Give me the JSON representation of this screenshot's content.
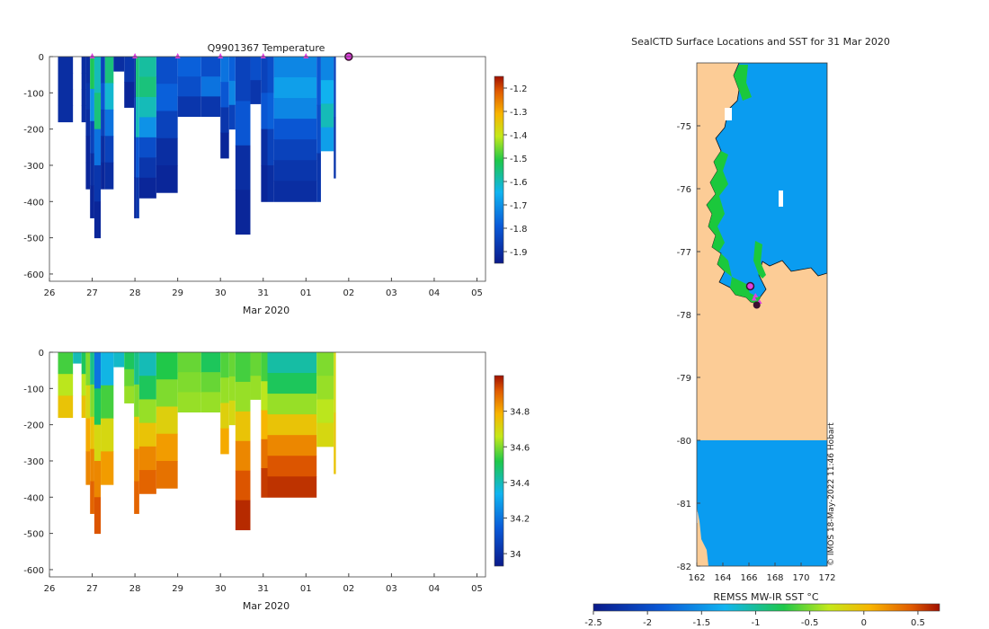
{
  "colors": {
    "land": "#fccc96",
    "ocean_sst": "#0a9cf0",
    "coast_green": "#1bc83c",
    "marker_magenta": "#e040e0",
    "marker_dark": "#3a1030"
  },
  "chart_data": [
    {
      "type": "heatmap",
      "id": "temperature",
      "title": "Q9901367  Temperature",
      "xlabel": "Mar 2020",
      "ylabel": "",
      "x_ticks": [
        "26",
        "27",
        "28",
        "29",
        "30",
        "31",
        "01",
        "02",
        "03",
        "04",
        "05"
      ],
      "x_range_days": [
        26,
        36.2
      ],
      "ylim": [
        -620,
        0
      ],
      "y_ticks": [
        "0",
        "-100",
        "-200",
        "-300",
        "-400",
        "-500",
        "-600"
      ],
      "colorbar_range": [
        -1.95,
        -1.15
      ],
      "colorbar_ticks": [
        "-1.2",
        "-1.3",
        "-1.4",
        "-1.5",
        "-1.6",
        "-1.7",
        "-1.8",
        "-1.9"
      ],
      "profile_markers_days": [
        27,
        28,
        29,
        30,
        31,
        32
      ],
      "position_marker_day": 33,
      "profiles": [
        {
          "t0": 26.2,
          "t1": 26.55,
          "depth": 180,
          "values": [
            -1.9,
            -1.9,
            -1.9,
            -1.9
          ]
        },
        {
          "t0": 26.75,
          "t1": 26.85,
          "depth": 180,
          "values": [
            -1.9,
            -1.9,
            -1.9,
            -1.9
          ]
        },
        {
          "t0": 26.85,
          "t1": 26.95,
          "depth": 365,
          "values": [
            -1.9,
            -1.88,
            -1.9,
            -1.92,
            -1.92
          ]
        },
        {
          "t0": 26.95,
          "t1": 27.05,
          "depth": 445,
          "values": [
            -1.52,
            -1.7,
            -1.85,
            -1.9,
            -1.92
          ]
        },
        {
          "t0": 27.05,
          "t1": 27.2,
          "depth": 500,
          "values": [
            -1.6,
            -1.55,
            -1.75,
            -1.88,
            -1.92
          ]
        },
        {
          "t0": 27.2,
          "t1": 27.3,
          "depth": 365,
          "values": [
            -1.85,
            -1.8,
            -1.85,
            -1.9,
            -1.92
          ]
        },
        {
          "t0": 27.3,
          "t1": 27.5,
          "depth": 365,
          "values": [
            -1.55,
            -1.62,
            -1.75,
            -1.85,
            -1.9
          ]
        },
        {
          "t0": 27.5,
          "t1": 27.75,
          "depth": 40,
          "values": [
            -1.9
          ]
        },
        {
          "t0": 27.75,
          "t1": 27.98,
          "depth": 140,
          "values": [
            -1.88,
            -1.92
          ]
        },
        {
          "t0": 27.98,
          "t1": 28.02,
          "depth": 445,
          "values": [
            -1.9,
            -1.88,
            -1.9,
            -1.92
          ]
        },
        {
          "t0": 28.02,
          "t1": 28.1,
          "depth": 445,
          "values": [
            -1.55,
            -1.6,
            -1.8,
            -1.88
          ]
        },
        {
          "t0": 28.1,
          "t1": 28.5,
          "depth": 390,
          "values": [
            -1.58,
            -1.55,
            -1.6,
            -1.7,
            -1.82,
            -1.88,
            -1.92
          ]
        },
        {
          "t0": 28.5,
          "t1": 29.0,
          "depth": 375,
          "values": [
            -1.82,
            -1.78,
            -1.85,
            -1.9,
            -1.92
          ]
        },
        {
          "t0": 29.0,
          "t1": 29.55,
          "depth": 165,
          "values": [
            -1.78,
            -1.82,
            -1.88
          ]
        },
        {
          "t0": 29.55,
          "t1": 30.0,
          "depth": 165,
          "values": [
            -1.82,
            -1.75,
            -1.88
          ]
        },
        {
          "t0": 30.0,
          "t1": 30.2,
          "depth": 280,
          "values": [
            -1.75,
            -1.8,
            -1.88,
            -1.92
          ]
        },
        {
          "t0": 30.2,
          "t1": 30.35,
          "depth": 200,
          "values": [
            -1.78,
            -1.72,
            -1.85
          ]
        },
        {
          "t0": 30.35,
          "t1": 30.7,
          "depth": 490,
          "values": [
            -1.85,
            -1.8,
            -1.9,
            -1.92
          ]
        },
        {
          "t0": 30.7,
          "t1": 30.95,
          "depth": 130,
          "values": [
            -1.82,
            -1.88
          ]
        },
        {
          "t0": 30.95,
          "t1": 31.1,
          "depth": 400,
          "values": [
            -1.85,
            -1.8,
            -1.9,
            -1.92
          ]
        },
        {
          "t0": 31.1,
          "t1": 31.25,
          "depth": 400,
          "values": [
            -1.82,
            -1.78,
            -1.85,
            -1.9
          ]
        },
        {
          "t0": 31.25,
          "t1": 32.25,
          "depth": 400,
          "values": [
            -1.72,
            -1.68,
            -1.72,
            -1.8,
            -1.85,
            -1.88,
            -1.9
          ]
        },
        {
          "t0": 32.25,
          "t1": 32.35,
          "depth": 400,
          "values": [
            -1.8,
            -1.82,
            -1.88
          ]
        },
        {
          "t0": 32.35,
          "t1": 32.65,
          "depth": 260,
          "values": [
            -1.72,
            -1.65,
            -1.6,
            -1.68
          ]
        },
        {
          "t0": 32.65,
          "t1": 32.7,
          "depth": 335,
          "values": [
            -1.85,
            -1.88
          ]
        }
      ]
    },
    {
      "type": "heatmap",
      "id": "salinity",
      "title": "",
      "xlabel": "Mar 2020",
      "x_ticks": [
        "26",
        "27",
        "28",
        "29",
        "30",
        "31",
        "01",
        "02",
        "03",
        "04",
        "05"
      ],
      "x_range_days": [
        26,
        36.2
      ],
      "ylim": [
        -620,
        0
      ],
      "y_ticks": [
        "0",
        "-100",
        "-200",
        "-300",
        "-400",
        "-500",
        "-600"
      ],
      "colorbar_range": [
        33.93,
        35.0
      ],
      "colorbar_ticks": [
        "34.8",
        "34.6",
        "34.4",
        "34.2",
        "34"
      ],
      "profiles": [
        {
          "t0": 26.2,
          "t1": 26.55,
          "depth": 180,
          "values": [
            34.55,
            34.65,
            34.75
          ]
        },
        {
          "t0": 26.55,
          "t1": 26.75,
          "depth": 30,
          "values": [
            34.4
          ]
        },
        {
          "t0": 26.75,
          "t1": 26.85,
          "depth": 180,
          "values": [
            34.5,
            34.65,
            34.75
          ]
        },
        {
          "t0": 26.85,
          "t1": 26.95,
          "depth": 365,
          "values": [
            34.6,
            34.7,
            34.8,
            34.85
          ]
        },
        {
          "t0": 26.95,
          "t1": 27.05,
          "depth": 445,
          "values": [
            34.45,
            34.6,
            34.75,
            34.85,
            34.9
          ]
        },
        {
          "t0": 27.05,
          "t1": 27.2,
          "depth": 500,
          "values": [
            34.2,
            34.5,
            34.7,
            34.85,
            34.92
          ]
        },
        {
          "t0": 27.2,
          "t1": 27.5,
          "depth": 365,
          "values": [
            34.35,
            34.55,
            34.7,
            34.82
          ]
        },
        {
          "t0": 27.5,
          "t1": 27.75,
          "depth": 40,
          "values": [
            34.38
          ]
        },
        {
          "t0": 27.75,
          "t1": 27.98,
          "depth": 140,
          "values": [
            34.5,
            34.58,
            34.62
          ]
        },
        {
          "t0": 27.98,
          "t1": 28.1,
          "depth": 445,
          "values": [
            34.45,
            34.6,
            34.75,
            34.85,
            34.9
          ]
        },
        {
          "t0": 28.1,
          "t1": 28.5,
          "depth": 390,
          "values": [
            34.4,
            34.5,
            34.62,
            34.75,
            34.85,
            34.9
          ]
        },
        {
          "t0": 28.5,
          "t1": 29.0,
          "depth": 375,
          "values": [
            34.52,
            34.6,
            34.72,
            34.82,
            34.88
          ]
        },
        {
          "t0": 29.0,
          "t1": 29.55,
          "depth": 165,
          "values": [
            34.58,
            34.6,
            34.62
          ]
        },
        {
          "t0": 29.55,
          "t1": 30.0,
          "depth": 165,
          "values": [
            34.5,
            34.58,
            34.62
          ]
        },
        {
          "t0": 30.0,
          "t1": 30.2,
          "depth": 280,
          "values": [
            34.56,
            34.62,
            34.72,
            34.8
          ]
        },
        {
          "t0": 30.2,
          "t1": 30.35,
          "depth": 200,
          "values": [
            34.58,
            34.62,
            34.7
          ]
        },
        {
          "t0": 30.35,
          "t1": 30.7,
          "depth": 490,
          "values": [
            34.55,
            34.62,
            34.75,
            34.85,
            34.92,
            34.97
          ]
        },
        {
          "t0": 30.7,
          "t1": 30.95,
          "depth": 130,
          "values": [
            34.58,
            34.62
          ]
        },
        {
          "t0": 30.95,
          "t1": 31.1,
          "depth": 400,
          "values": [
            34.55,
            34.65,
            34.78,
            34.88,
            34.95
          ]
        },
        {
          "t0": 31.1,
          "t1": 32.25,
          "depth": 400,
          "values": [
            34.42,
            34.5,
            34.62,
            34.75,
            34.85,
            34.92,
            34.96
          ]
        },
        {
          "t0": 32.25,
          "t1": 32.65,
          "depth": 260,
          "values": [
            34.6,
            34.62,
            34.65,
            34.7
          ]
        },
        {
          "t0": 32.65,
          "t1": 32.7,
          "depth": 335,
          "values": [
            34.7,
            34.75
          ]
        }
      ]
    },
    {
      "type": "heatmap",
      "id": "sst_map",
      "title": "SealCTD Surface Locations and SST for 31 Mar 2020",
      "colorbar_label": "REMSS MW-IR SST °C",
      "xlim": [
        162,
        172
      ],
      "ylim": [
        -82,
        -74
      ],
      "x_ticks": [
        "162",
        "164",
        "166",
        "168",
        "170",
        "172"
      ],
      "y_ticks": [
        "-75",
        "-76",
        "-77",
        "-78",
        "-79",
        "-80",
        "-81",
        "-82"
      ],
      "colorbar_range": [
        -2.5,
        0.7
      ],
      "colorbar_ticks": [
        "-2.5",
        "-2",
        "-1.5",
        "-1",
        "-0.5",
        "0",
        "0.5"
      ],
      "sst_value_open_water": -1.7,
      "sst_value_coastal": -1.2,
      "track": [
        [
          166.2,
          -77.55
        ],
        [
          166.4,
          -77.75
        ],
        [
          166.6,
          -77.85
        ],
        [
          166.8,
          -77.8
        ],
        [
          166.5,
          -77.7
        ]
      ],
      "current_position": [
        166.1,
        -77.55
      ],
      "watermark": "© IMOS 18-May-2022 11:46 Hobart"
    }
  ]
}
